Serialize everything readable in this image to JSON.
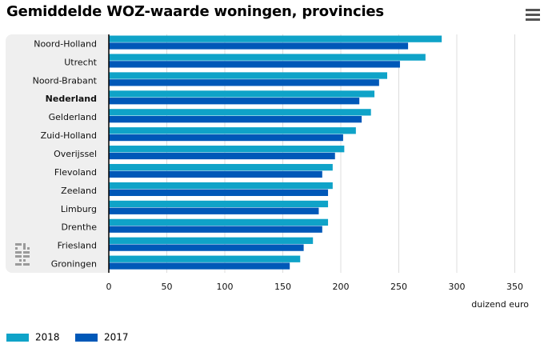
{
  "page": {
    "title": "Gemiddelde WOZ-waarde woningen, provincies",
    "menu_icon": "hamburger-menu-icon",
    "logo_icon": "cbs-logo-icon"
  },
  "colors": {
    "series_2018": "#0fa3c8",
    "series_2017": "#0058b8",
    "label_panel": "#efefef",
    "gridline": "#dcdcdc",
    "axis_line": "#000000"
  },
  "chart_data": {
    "type": "bar",
    "orientation": "horizontal",
    "categories": [
      "Noord-Holland",
      "Utrecht",
      "Noord-Brabant",
      "Nederland",
      "Gelderland",
      "Zuid-Holland",
      "Overijssel",
      "Flevoland",
      "Zeeland",
      "Limburg",
      "Drenthe",
      "Friesland",
      "Groningen"
    ],
    "bold_category": "Nederland",
    "series": [
      {
        "name": "2018",
        "values": [
          287,
          273,
          240,
          229,
          226,
          213,
          203,
          193,
          193,
          189,
          189,
          176,
          165
        ]
      },
      {
        "name": "2017",
        "values": [
          258,
          251,
          233,
          216,
          218,
          202,
          195,
          184,
          189,
          181,
          184,
          168,
          156
        ]
      }
    ],
    "xlabel": "duizend euro",
    "xlim": [
      0,
      360
    ],
    "xticks": [
      0,
      50,
      100,
      150,
      200,
      250,
      300,
      350
    ],
    "grid": true,
    "legend_position": "bottom-left"
  }
}
